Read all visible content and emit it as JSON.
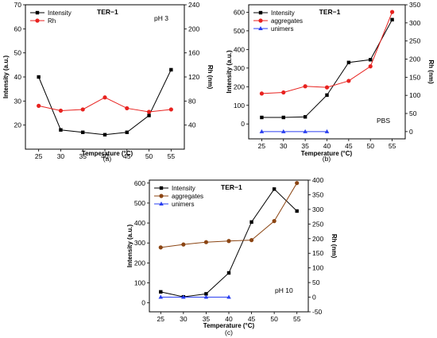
{
  "chart_data": [
    {
      "id": "a",
      "type": "line",
      "title": "TER−1",
      "annotation": "pH 3",
      "caption": "(a)",
      "xlabel": "Temperature (°C)",
      "ylabel_left": "Intensity (a.u.)",
      "ylabel_right": "Rh (nm)",
      "x": [
        25,
        30,
        35,
        40,
        45,
        50,
        55
      ],
      "xlim": [
        22,
        58
      ],
      "ylim_left": [
        10,
        70
      ],
      "yticks_left": [
        20,
        30,
        40,
        50,
        60,
        70
      ],
      "ylim_right": [
        0,
        240
      ],
      "yticks_right": [
        40,
        80,
        120,
        160,
        200,
        240
      ],
      "legend_position": "top-left",
      "series": [
        {
          "name": "Intensity",
          "axis": "left",
          "color": "#000000",
          "marker": "square",
          "values": [
            40,
            18,
            17,
            16,
            17,
            24,
            43
          ]
        },
        {
          "name": "Rh",
          "axis": "right",
          "color": "#e8221f",
          "marker": "circle",
          "values": [
            72,
            64,
            66,
            86,
            68,
            62,
            66
          ]
        }
      ]
    },
    {
      "id": "b",
      "type": "line",
      "title": "TER−1",
      "annotation": "PBS",
      "caption": "(b)",
      "xlabel": "Temperature (°C)",
      "ylabel_left": "Intensity (a.u.)",
      "ylabel_right": "Rh (nm)",
      "x": [
        25,
        30,
        35,
        40,
        45,
        50,
        55
      ],
      "xlim": [
        22,
        58
      ],
      "ylim_left": [
        -80,
        640
      ],
      "yticks_left": [
        0,
        100,
        200,
        300,
        400,
        500,
        600
      ],
      "ylim_right": [
        -20,
        350
      ],
      "yticks_right": [
        0,
        50,
        100,
        150,
        200,
        250,
        300,
        350
      ],
      "legend_position": "top-left",
      "series": [
        {
          "name": "Intensity",
          "axis": "left",
          "color": "#000000",
          "marker": "square",
          "values": [
            35,
            35,
            38,
            155,
            330,
            345,
            560
          ]
        },
        {
          "name": "aggregates",
          "axis": "right",
          "color": "#e8221f",
          "marker": "circle",
          "values": [
            105,
            108,
            125,
            122,
            140,
            180,
            330
          ]
        },
        {
          "name": "unimers",
          "axis": "right",
          "color": "#2a3ff0",
          "marker": "triangle",
          "x": [
            25,
            30,
            35,
            40
          ],
          "values": [
            0,
            0,
            0,
            0
          ]
        }
      ]
    },
    {
      "id": "c",
      "type": "line",
      "title": "TER−1",
      "annotation": "pH 10",
      "caption": "(c)",
      "xlabel": "Temperature (°C)",
      "ylabel_left": "Intensity (a.u.)",
      "ylabel_right": "Rh (nm)",
      "x": [
        25,
        30,
        35,
        40,
        45,
        50,
        55
      ],
      "xlim": [
        22.5,
        57.5
      ],
      "ylim_left": [
        -45,
        615
      ],
      "yticks_left": [
        0,
        100,
        200,
        300,
        400,
        500,
        600
      ],
      "ylim_right": [
        -50,
        400
      ],
      "yticks_right": [
        -50,
        0,
        50,
        100,
        150,
        200,
        250,
        300,
        350,
        400
      ],
      "legend_position": "top-left",
      "series": [
        {
          "name": "Intensity",
          "axis": "left",
          "color": "#000000",
          "marker": "square",
          "values": [
            55,
            30,
            45,
            150,
            405,
            570,
            460
          ]
        },
        {
          "name": "aggregates",
          "axis": "right",
          "color": "#8b4513",
          "marker": "circle",
          "values": [
            170,
            180,
            188,
            192,
            195,
            260,
            390
          ]
        },
        {
          "name": "unimers",
          "axis": "right",
          "color": "#2a3ff0",
          "marker": "triangle",
          "x": [
            25,
            30,
            35,
            40
          ],
          "values": [
            0,
            0,
            0,
            0
          ]
        }
      ]
    }
  ]
}
